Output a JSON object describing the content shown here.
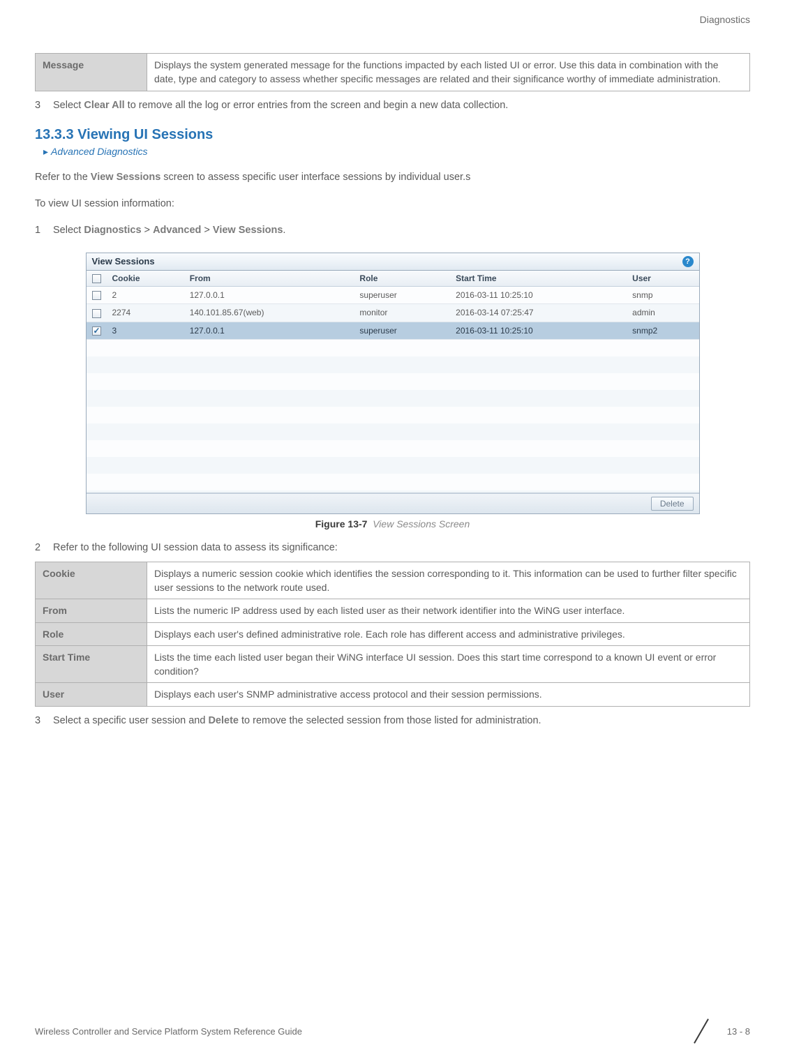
{
  "header": {
    "section": "Diagnostics"
  },
  "intro_table": {
    "rows": [
      {
        "label": "Message",
        "desc": "Displays the system generated message for the functions impacted by each listed UI or error. Use this data in combination with the date, type and category to assess whether specific messages are related and their significance worthy of immediate administration."
      }
    ]
  },
  "step3a": {
    "num": "3",
    "pre": "Select ",
    "bold": "Clear All",
    "post": " to remove all the log or error entries from the screen and begin a new data collection."
  },
  "section": {
    "heading": "13.3.3 Viewing UI Sessions",
    "breadcrumb": "Advanced Diagnostics"
  },
  "para1": {
    "pre": "Refer to the ",
    "bold": "View Sessions",
    "post": " screen to assess specific user interface sessions by individual user.s"
  },
  "para2": "To view UI session information:",
  "step1": {
    "num": "1",
    "pre": "Select ",
    "b1": "Diagnostics",
    "sep1": " > ",
    "b2": "Advanced",
    "sep2": " > ",
    "b3": "View Sessions",
    "post": "."
  },
  "screenshot": {
    "title": "View Sessions",
    "columns": [
      "Cookie",
      "From",
      "Role",
      "Start Time",
      "User"
    ],
    "rows": [
      {
        "checked": false,
        "cookie": "2",
        "from": "127.0.0.1",
        "role": "superuser",
        "start": "2016-03-11 10:25:10",
        "user": "snmp",
        "selected": false,
        "alt": false
      },
      {
        "checked": false,
        "cookie": "2274",
        "from": "140.101.85.67(web)",
        "role": "monitor",
        "start": "2016-03-14 07:25:47",
        "user": "admin",
        "selected": false,
        "alt": true
      },
      {
        "checked": true,
        "cookie": "3",
        "from": "127.0.0.1",
        "role": "superuser",
        "start": "2016-03-11 10:25:10",
        "user": "snmp2",
        "selected": true,
        "alt": false
      }
    ],
    "delete_btn": "Delete"
  },
  "figure": {
    "label": "Figure 13-7",
    "title": "View Sessions Screen"
  },
  "step2": {
    "num": "2",
    "text": "Refer to the following UI session data to assess its significance:"
  },
  "field_table": {
    "rows": [
      {
        "label": "Cookie",
        "desc": "Displays a numeric session cookie which identifies the session corresponding to it. This information can be used to further filter specific user sessions to the network route used."
      },
      {
        "label": "From",
        "desc": "Lists the numeric IP address used by each listed user as their network identifier into the WiNG user interface."
      },
      {
        "label": "Role",
        "desc": "Displays each user's defined administrative role. Each role has different access and administrative privileges."
      },
      {
        "label": "Start Time",
        "desc": "Lists the time each listed user began their WiNG interface UI session. Does this start time correspond to a known UI event or error condition?"
      },
      {
        "label": "User",
        "desc": "Displays each user's SNMP administrative access protocol and their session permissions."
      }
    ]
  },
  "step3b": {
    "num": "3",
    "pre": "Select a specific user session and ",
    "bold": "Delete",
    "post": " to remove the selected session from those listed for administration."
  },
  "footer": {
    "left": "Wireless Controller and Service Platform System Reference Guide",
    "right": "13 - 8"
  }
}
